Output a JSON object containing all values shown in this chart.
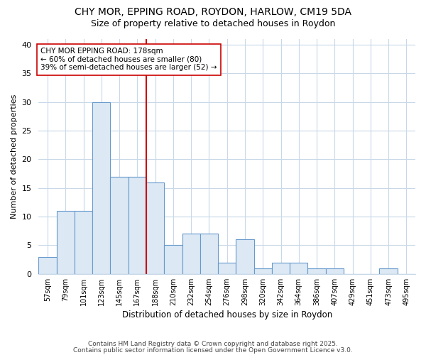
{
  "title": "CHY MOR, EPPING ROAD, ROYDON, HARLOW, CM19 5DA",
  "subtitle": "Size of property relative to detached houses in Roydon",
  "xlabel": "Distribution of detached houses by size in Roydon",
  "ylabel": "Number of detached properties",
  "bar_labels": [
    "57sqm",
    "79sqm",
    "101sqm",
    "123sqm",
    "145sqm",
    "167sqm",
    "188sqm",
    "210sqm",
    "232sqm",
    "254sqm",
    "276sqm",
    "298sqm",
    "320sqm",
    "342sqm",
    "364sqm",
    "386sqm",
    "407sqm",
    "429sqm",
    "451sqm",
    "473sqm",
    "495sqm"
  ],
  "bar_values": [
    3,
    11,
    11,
    30,
    17,
    17,
    16,
    5,
    7,
    7,
    2,
    6,
    1,
    2,
    2,
    1,
    1,
    0,
    0,
    1,
    0
  ],
  "bar_color": "#dce9f5",
  "bar_edge_color": "#6699cc",
  "vline_color": "#cc0000",
  "annotation_text": "CHY MOR EPPING ROAD: 178sqm\n← 60% of detached houses are smaller (80)\n39% of semi-detached houses are larger (52) →",
  "annotation_box_color": "#ffffff",
  "annotation_box_edge": "#cc0000",
  "ylim": [
    0,
    41
  ],
  "yticks": [
    0,
    5,
    10,
    15,
    20,
    25,
    30,
    35,
    40
  ],
  "footnote1": "Contains HM Land Registry data © Crown copyright and database right 2025.",
  "footnote2": "Contains public sector information licensed under the Open Government Licence v3.0.",
  "bg_color": "#ffffff",
  "plot_bg_color": "#ffffff",
  "grid_color": "#c8d8e8",
  "bin_width": 22,
  "vline_index": 6
}
